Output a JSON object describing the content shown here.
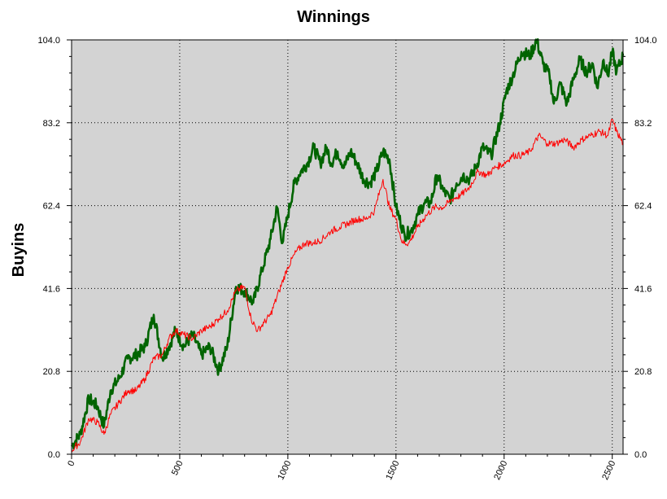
{
  "chart_data": {
    "type": "line",
    "title": "Winnings",
    "xlabel": "",
    "ylabel": "Buyins",
    "xlim": [
      0,
      2550
    ],
    "ylim": [
      0,
      104
    ],
    "x_ticks": [
      0,
      500,
      1000,
      1500,
      2000,
      2500
    ],
    "x_tick_labels": [
      "0",
      "500",
      "1000",
      "1500",
      "2000",
      "2500"
    ],
    "y_ticks": [
      0,
      20.8,
      41.6,
      62.4,
      83.2,
      104
    ],
    "y_tick_labels": [
      "0.0",
      "20.8",
      "41.6",
      "62.4",
      "83.2",
      "104.0"
    ],
    "grid": true,
    "plot_background": "#d3d3d3",
    "series": [
      {
        "color": "#006400",
        "values": [
          [
            0,
            2
          ],
          [
            40,
            5
          ],
          [
            80,
            14
          ],
          [
            120,
            12
          ],
          [
            150,
            7
          ],
          [
            180,
            16
          ],
          [
            220,
            19
          ],
          [
            260,
            24
          ],
          [
            300,
            25
          ],
          [
            340,
            27
          ],
          [
            380,
            35
          ],
          [
            420,
            24
          ],
          [
            450,
            27
          ],
          [
            480,
            31
          ],
          [
            520,
            27
          ],
          [
            560,
            30
          ],
          [
            600,
            25
          ],
          [
            640,
            27
          ],
          [
            680,
            21
          ],
          [
            720,
            27
          ],
          [
            760,
            42
          ],
          [
            800,
            41
          ],
          [
            840,
            38
          ],
          [
            880,
            46
          ],
          [
            920,
            54
          ],
          [
            950,
            62
          ],
          [
            975,
            53
          ],
          [
            1000,
            60
          ],
          [
            1030,
            68
          ],
          [
            1060,
            71
          ],
          [
            1090,
            73
          ],
          [
            1120,
            77
          ],
          [
            1150,
            73
          ],
          [
            1180,
            77
          ],
          [
            1200,
            73
          ],
          [
            1230,
            76
          ],
          [
            1260,
            72
          ],
          [
            1290,
            76
          ],
          [
            1320,
            73
          ],
          [
            1350,
            69
          ],
          [
            1380,
            68
          ],
          [
            1410,
            71
          ],
          [
            1440,
            76
          ],
          [
            1470,
            74
          ],
          [
            1500,
            62
          ],
          [
            1540,
            55
          ],
          [
            1570,
            56
          ],
          [
            1600,
            60
          ],
          [
            1630,
            63
          ],
          [
            1660,
            63
          ],
          [
            1690,
            70
          ],
          [
            1720,
            66
          ],
          [
            1750,
            64
          ],
          [
            1780,
            68
          ],
          [
            1810,
            70
          ],
          [
            1840,
            69
          ],
          [
            1870,
            72
          ],
          [
            1900,
            77
          ],
          [
            1940,
            75
          ],
          [
            1980,
            83
          ],
          [
            2010,
            91
          ],
          [
            2040,
            95
          ],
          [
            2080,
            101
          ],
          [
            2120,
            100
          ],
          [
            2150,
            104
          ],
          [
            2180,
            98
          ],
          [
            2210,
            95
          ],
          [
            2230,
            88
          ],
          [
            2260,
            93
          ],
          [
            2290,
            88
          ],
          [
            2320,
            94
          ],
          [
            2350,
            99
          ],
          [
            2380,
            96
          ],
          [
            2410,
            98
          ],
          [
            2430,
            92
          ],
          [
            2460,
            99
          ],
          [
            2480,
            95
          ],
          [
            2500,
            101
          ],
          [
            2520,
            96
          ],
          [
            2550,
            100
          ]
        ]
      },
      {
        "color": "#ff0000",
        "values": [
          [
            0,
            1
          ],
          [
            40,
            3
          ],
          [
            80,
            9
          ],
          [
            120,
            8
          ],
          [
            150,
            5
          ],
          [
            180,
            10
          ],
          [
            220,
            13
          ],
          [
            260,
            16
          ],
          [
            300,
            16
          ],
          [
            340,
            19
          ],
          [
            380,
            24
          ],
          [
            420,
            25
          ],
          [
            450,
            29
          ],
          [
            480,
            31
          ],
          [
            520,
            30
          ],
          [
            560,
            29
          ],
          [
            600,
            31
          ],
          [
            640,
            32
          ],
          [
            680,
            34
          ],
          [
            720,
            36
          ],
          [
            760,
            41
          ],
          [
            800,
            42
          ],
          [
            830,
            34
          ],
          [
            860,
            31
          ],
          [
            890,
            33
          ],
          [
            920,
            35
          ],
          [
            960,
            41
          ],
          [
            1000,
            47
          ],
          [
            1040,
            51
          ],
          [
            1080,
            53
          ],
          [
            1120,
            53
          ],
          [
            1160,
            54
          ],
          [
            1200,
            56
          ],
          [
            1240,
            57
          ],
          [
            1280,
            58
          ],
          [
            1320,
            59
          ],
          [
            1360,
            59
          ],
          [
            1400,
            61
          ],
          [
            1440,
            69
          ],
          [
            1470,
            62
          ],
          [
            1500,
            59
          ],
          [
            1530,
            53
          ],
          [
            1560,
            53
          ],
          [
            1600,
            57
          ],
          [
            1640,
            60
          ],
          [
            1680,
            62
          ],
          [
            1720,
            62
          ],
          [
            1760,
            64
          ],
          [
            1800,
            65
          ],
          [
            1840,
            67
          ],
          [
            1880,
            71
          ],
          [
            1920,
            70
          ],
          [
            1960,
            72
          ],
          [
            2000,
            73
          ],
          [
            2040,
            75
          ],
          [
            2080,
            75
          ],
          [
            2120,
            76
          ],
          [
            2160,
            80
          ],
          [
            2200,
            78
          ],
          [
            2240,
            78
          ],
          [
            2280,
            79
          ],
          [
            2320,
            77
          ],
          [
            2360,
            79
          ],
          [
            2400,
            80
          ],
          [
            2440,
            81
          ],
          [
            2480,
            80
          ],
          [
            2500,
            84
          ],
          [
            2520,
            81
          ],
          [
            2550,
            78
          ]
        ]
      }
    ]
  }
}
